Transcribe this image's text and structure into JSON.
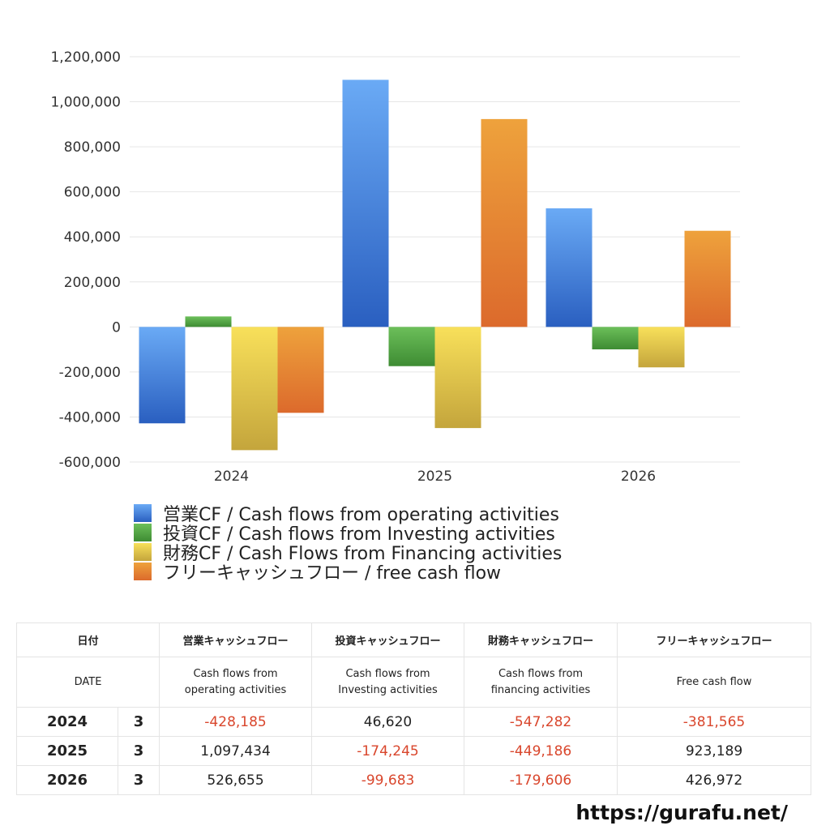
{
  "chart_data": {
    "type": "bar",
    "title": "",
    "xlabel": "",
    "ylabel": "",
    "categories": [
      "2024",
      "2025",
      "2026"
    ],
    "ylim": [
      -600000,
      1200000
    ],
    "yticks": [
      1200000,
      1000000,
      800000,
      600000,
      400000,
      200000,
      0,
      -200000,
      -400000,
      -600000
    ],
    "ytick_labels": [
      "1,200,000",
      "1,000,000",
      "800,000",
      "600,000",
      "400,000",
      "200,000",
      "0",
      "-200,000",
      "-400,000",
      "-600,000"
    ],
    "grid": true,
    "legend_position": "bottom",
    "series": [
      {
        "name": "営業CF / Cash flows from operating activities",
        "values": [
          -428185,
          1097434,
          526655
        ],
        "color_top": "#6aaaf5",
        "color_bottom": "#2a5fc0"
      },
      {
        "name": "投資CF / Cash flows from Investing activities",
        "values": [
          46620,
          -174245,
          -99683
        ],
        "color_top": "#6cbf5a",
        "color_bottom": "#3e8c33"
      },
      {
        "name": "財務CF / Cash Flows from Financing activities",
        "values": [
          -547282,
          -449186,
          -179606
        ],
        "color_top": "#f8e05a",
        "color_bottom": "#c4a53c"
      },
      {
        "name": "フリーキャッシュフロー / free cash flow",
        "values": [
          -381565,
          923189,
          426972
        ],
        "color_top": "#eea23c",
        "color_bottom": "#dc6a2c"
      }
    ]
  },
  "table": {
    "header_jp": {
      "date": "日付",
      "operating": "営業キャッシュフロー",
      "investing": "投資キャッシュフロー",
      "financing": "財務キャッシュフロー",
      "free": "フリーキャッシュフロー"
    },
    "header_en": {
      "date": "DATE",
      "operating_1": "Cash flows from",
      "operating_2": "operating activities",
      "investing_1": "Cash flows from",
      "investing_2": "Investing activities",
      "financing_1": "Cash flows from",
      "financing_2": "financing activities",
      "free": "Free cash flow"
    },
    "rows": [
      {
        "year": "2024",
        "month": "3",
        "operating": "-428,185",
        "investing": "46,620",
        "financing": "-547,282",
        "free": "-381,565"
      },
      {
        "year": "2025",
        "month": "3",
        "operating": "1,097,434",
        "investing": "-174,245",
        "financing": "-449,186",
        "free": "923,189"
      },
      {
        "year": "2026",
        "month": "3",
        "operating": "526,655",
        "investing": "-99,683",
        "financing": "-179,606",
        "free": "426,972"
      }
    ]
  },
  "colors": {
    "negative": "#d9462c",
    "positive": "#222222"
  },
  "watermark": "https://gurafu.net/"
}
